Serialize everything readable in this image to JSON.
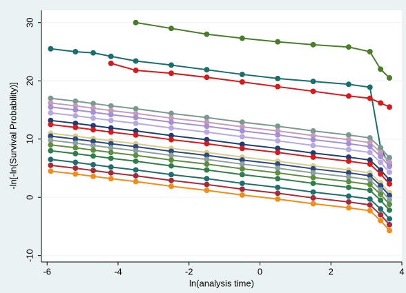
{
  "chart_data": {
    "type": "line",
    "xlabel": "ln(analysis time)",
    "ylabel": "-ln[-ln(Survival Probability)]",
    "x": [
      -5.9,
      -5.2,
      -4.7,
      -4.2,
      -3.5,
      -2.5,
      -1.5,
      -0.5,
      0.5,
      1.5,
      2.5,
      3.1,
      3.4,
      3.65
    ],
    "xlim": [
      -6.16,
      4.0
    ],
    "xticks": [
      -6,
      -4,
      -2,
      0,
      2,
      4
    ],
    "ylim": [
      -11.1,
      32.1
    ],
    "yticks": [
      -10,
      0,
      10,
      20,
      30
    ],
    "grid": true,
    "series": [
      {
        "color": "#4a7d2a",
        "values": [
          null,
          null,
          null,
          null,
          30.0,
          29.0,
          28.0,
          27.3,
          26.7,
          26.2,
          25.8,
          25.0,
          22.0,
          20.5
        ]
      },
      {
        "color": "#1a6e6a",
        "values": [
          25.5,
          25.0,
          24.8,
          24.2,
          23.4,
          22.7,
          21.9,
          21.1,
          20.4,
          19.9,
          19.4,
          18.9,
          8.5,
          5.5
        ]
      },
      {
        "color": "#d7191c",
        "values": [
          null,
          null,
          null,
          23.0,
          21.8,
          21.3,
          20.6,
          19.8,
          19.0,
          18.2,
          17.4,
          17.0,
          16.2,
          15.5
        ]
      },
      {
        "color": "#7a9a8e",
        "values": [
          17,
          16.5,
          16.1,
          15.7,
          15.2,
          14.4,
          13.7,
          12.9,
          12.2,
          11.4,
          10.7,
          10.2,
          8.5,
          6.8
        ]
      },
      {
        "color": "#c49bb8",
        "values": [
          16.2,
          15.7,
          15.3,
          14.9,
          14.4,
          13.6,
          12.9,
          12.1,
          11.4,
          10.6,
          9.9,
          9.4,
          7.7,
          6.0
        ]
      },
      {
        "color": "#a58fd6",
        "values": [
          15.5,
          15,
          14.6,
          14.2,
          13.7,
          12.9,
          12.2,
          11.4,
          10.7,
          9.9,
          9.2,
          8.7,
          7.0,
          5.3
        ]
      },
      {
        "color": "#b7a9e0",
        "values": [
          14.5,
          14,
          13.6,
          13.2,
          12.7,
          11.9,
          11.2,
          10.4,
          9.7,
          8.9,
          8.2,
          7.7,
          6.0,
          4.3
        ]
      },
      {
        "color": "#1f3d70",
        "values": [
          13.2,
          12.7,
          12.3,
          11.9,
          11.4,
          10.6,
          9.9,
          9.1,
          8.4,
          7.6,
          6.9,
          6.4,
          4.7,
          3.0
        ]
      },
      {
        "color": "#d7191c",
        "values": [
          12.5,
          12,
          11.6,
          11.2,
          10.7,
          9.9,
          9.2,
          8.4,
          7.7,
          6.9,
          6.2,
          5.7,
          4.0,
          2.3
        ]
      },
      {
        "color": "#d6cc8c",
        "values": [
          11,
          10.5,
          10.1,
          9.7,
          9.2,
          8.4,
          7.7,
          6.9,
          6.2,
          5.4,
          4.7,
          4.2,
          2.5,
          0.8
        ]
      },
      {
        "color": "#2a4a80",
        "values": [
          10.5,
          10,
          9.6,
          9.2,
          8.7,
          7.9,
          7.2,
          6.4,
          5.7,
          4.9,
          4.2,
          3.7,
          2.0,
          0.3
        ]
      },
      {
        "color": "#8e9fa0",
        "values": [
          9.8,
          9.3,
          8.9,
          8.5,
          8,
          7.2,
          6.5,
          5.7,
          5,
          4.2,
          3.5,
          3,
          1.3,
          -0.4
        ]
      },
      {
        "color": "#5e8f3e",
        "values": [
          9,
          8.5,
          8.1,
          7.7,
          7.2,
          6.4,
          5.7,
          4.9,
          4.2,
          3.4,
          2.7,
          2.2,
          0.5,
          -1.2
        ]
      },
      {
        "color": "#2e7d4a",
        "values": [
          8,
          7.5,
          7.1,
          6.7,
          6.2,
          5.4,
          4.7,
          3.9,
          3.2,
          2.4,
          1.7,
          1.2,
          -0.5,
          -2.2
        ]
      },
      {
        "color": "#1d6e6c",
        "values": [
          6.5,
          6,
          5.6,
          5.2,
          4.7,
          3.9,
          3.2,
          2.4,
          1.7,
          0.9,
          0.2,
          -0.3,
          -2.0,
          -3.7
        ]
      },
      {
        "color": "#a52a3a",
        "values": [
          5.5,
          5,
          4.6,
          4.2,
          3.7,
          2.9,
          2.2,
          1.4,
          0.7,
          -0.1,
          -0.8,
          -1.3,
          -3.0,
          -4.7
        ]
      },
      {
        "color": "#f28c1a",
        "values": [
          4.5,
          4,
          3.6,
          3.2,
          2.7,
          1.9,
          1.2,
          0.4,
          -0.3,
          -1.1,
          -1.8,
          -2.3,
          -4.0,
          -5.7
        ]
      }
    ]
  }
}
